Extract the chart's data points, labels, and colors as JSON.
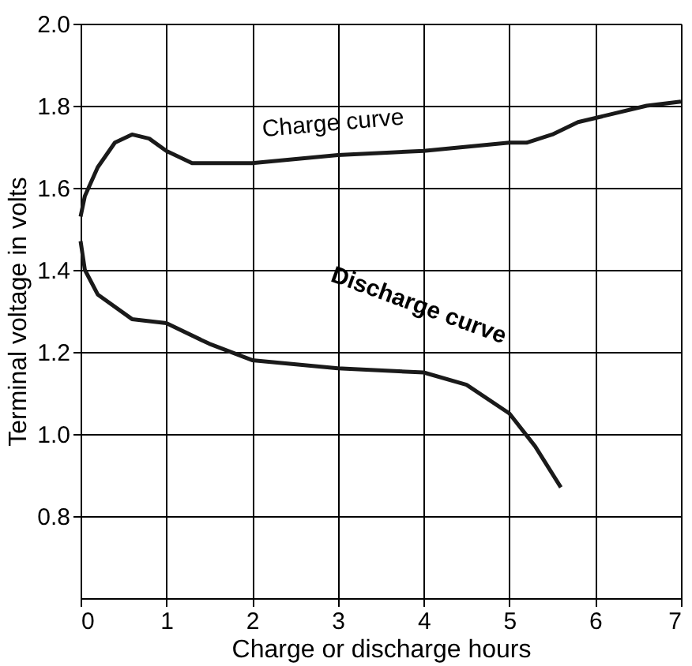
{
  "chart_data": {
    "type": "line",
    "xlabel": "Charge or discharge hours",
    "ylabel": "Terminal voltage in volts",
    "xlim": [
      0,
      7
    ],
    "xticks": [
      0,
      1,
      2,
      3,
      4,
      5,
      6,
      7
    ],
    "ylim": [
      0.6,
      2.0
    ],
    "yticks": [
      {
        "value": 0.8,
        "label": "0.8"
      },
      {
        "value": 1.0,
        "label": "1.0"
      },
      {
        "value": 1.2,
        "label": "1.2"
      },
      {
        "value": 1.4,
        "label": "1.4"
      },
      {
        "value": 1.6,
        "label": "1.6"
      },
      {
        "value": 1.8,
        "label": "1.8"
      },
      {
        "value": 2.0,
        "label": "2.0"
      }
    ],
    "grid": true,
    "marker": "none",
    "line_style": "solid",
    "series": [
      {
        "color": "#1a1a1a",
        "x": [
          0,
          0.05,
          0.2,
          0.4,
          0.6,
          0.8,
          1.0,
          1.3,
          1.5,
          2,
          3,
          4,
          5,
          5.2,
          5.5,
          5.8,
          6.2,
          6.6,
          7
        ],
        "values": [
          1.53,
          1.58,
          1.65,
          1.71,
          1.73,
          1.72,
          1.69,
          1.66,
          1.66,
          1.66,
          1.68,
          1.69,
          1.71,
          1.71,
          1.73,
          1.76,
          1.78,
          1.8,
          1.81
        ]
      },
      {
        "color": "#1a1a1a",
        "x": [
          0,
          0.05,
          0.2,
          0.6,
          1,
          1.5,
          2,
          3,
          4,
          4.5,
          5,
          5.3,
          5.6
        ],
        "values": [
          1.47,
          1.4,
          1.34,
          1.28,
          1.27,
          1.22,
          1.18,
          1.16,
          1.15,
          1.12,
          1.05,
          0.97,
          0.87
        ]
      }
    ],
    "annotations": [
      "Charge curve",
      "Discharge curve"
    ]
  }
}
